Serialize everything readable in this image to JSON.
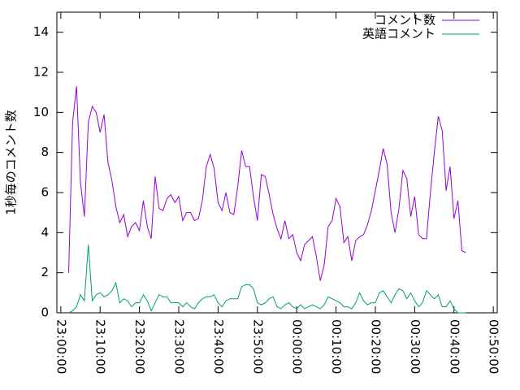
{
  "chart_data": {
    "type": "line",
    "ylabel": "1秒毎のコメント数",
    "x": [
      "23:02:00",
      "23:03:00",
      "23:04:00",
      "23:05:00",
      "23:06:00",
      "23:07:00",
      "23:08:00",
      "23:09:00",
      "23:10:00",
      "23:11:00",
      "23:12:00",
      "23:13:00",
      "23:14:00",
      "23:15:00",
      "23:16:00",
      "23:17:00",
      "23:18:00",
      "23:19:00",
      "23:20:00",
      "23:21:00",
      "23:22:00",
      "23:23:00",
      "23:24:00",
      "23:25:00",
      "23:26:00",
      "23:27:00",
      "23:28:00",
      "23:29:00",
      "23:30:00",
      "23:31:00",
      "23:32:00",
      "23:33:00",
      "23:34:00",
      "23:35:00",
      "23:36:00",
      "23:37:00",
      "23:38:00",
      "23:39:00",
      "23:40:00",
      "23:41:00",
      "23:42:00",
      "23:43:00",
      "23:44:00",
      "23:45:00",
      "23:46:00",
      "23:47:00",
      "23:48:00",
      "23:49:00",
      "23:50:00",
      "23:51:00",
      "23:52:00",
      "23:53:00",
      "23:54:00",
      "23:55:00",
      "23:56:00",
      "23:57:00",
      "23:58:00",
      "23:59:00",
      "00:00:00",
      "00:01:00",
      "00:02:00",
      "00:03:00",
      "00:04:00",
      "00:05:00",
      "00:06:00",
      "00:07:00",
      "00:08:00",
      "00:09:00",
      "00:10:00",
      "00:11:00",
      "00:12:00",
      "00:13:00",
      "00:14:00",
      "00:15:00",
      "00:16:00",
      "00:17:00",
      "00:18:00",
      "00:19:00",
      "00:20:00",
      "00:21:00",
      "00:22:00",
      "00:23:00",
      "00:24:00",
      "00:25:00",
      "00:26:00",
      "00:27:00",
      "00:28:00",
      "00:29:00",
      "00:30:00",
      "00:31:00",
      "00:32:00",
      "00:33:00",
      "00:34:00",
      "00:35:00",
      "00:36:00",
      "00:37:00",
      "00:38:00",
      "00:39:00",
      "00:40:00",
      "00:41:00",
      "00:42:00",
      "00:43:00"
    ],
    "series": [
      {
        "name": "コメント数",
        "color": "#9400d3",
        "values": [
          2.0,
          9.5,
          11.3,
          6.5,
          4.8,
          9.5,
          10.3,
          10.0,
          9.0,
          9.9,
          7.5,
          6.6,
          5.3,
          4.5,
          4.9,
          3.8,
          4.3,
          4.5,
          4.1,
          5.6,
          4.3,
          3.7,
          6.8,
          5.2,
          5.1,
          5.7,
          5.9,
          5.5,
          5.8,
          4.6,
          5.0,
          5.0,
          4.6,
          4.7,
          5.6,
          7.3,
          7.9,
          7.2,
          5.5,
          5.1,
          6.0,
          5.0,
          4.9,
          6.3,
          8.1,
          7.3,
          7.3,
          5.8,
          4.6,
          6.9,
          6.8,
          5.9,
          4.9,
          4.2,
          3.7,
          4.6,
          3.7,
          3.9,
          3.0,
          2.6,
          3.4,
          3.6,
          3.8,
          2.8,
          1.6,
          2.4,
          4.3,
          4.6,
          5.7,
          5.3,
          3.5,
          3.8,
          2.6,
          3.6,
          3.8,
          3.9,
          4.4,
          5.1,
          6.1,
          7.1,
          8.2,
          7.4,
          5.0,
          4.0,
          5.2,
          7.1,
          6.7,
          4.8,
          5.8,
          3.9,
          3.7,
          3.7,
          6.0,
          8.0,
          9.8,
          9.1,
          6.1,
          7.3,
          4.7,
          5.6,
          3.1,
          3.0
        ]
      },
      {
        "name": "英語コメント",
        "color": "#009e73",
        "values": [
          0,
          0.1,
          0.3,
          0.9,
          0.6,
          3.4,
          0.6,
          0.9,
          1.0,
          0.8,
          0.9,
          1.1,
          1.5,
          0.5,
          0.7,
          0.6,
          0.3,
          0.5,
          0.5,
          0.9,
          0.6,
          0.1,
          0.5,
          0.9,
          0.8,
          0.8,
          0.5,
          0.5,
          0.5,
          0.3,
          0.5,
          0.3,
          0.2,
          0.5,
          0.7,
          0.8,
          0.8,
          0.9,
          0.5,
          0.3,
          0.6,
          0.7,
          0.7,
          0.7,
          1.3,
          1.4,
          1.4,
          1.2,
          0.5,
          0.4,
          0.5,
          0.7,
          0.8,
          0.3,
          0.2,
          0.4,
          0.5,
          0.3,
          0.2,
          0.4,
          0.2,
          0.3,
          0.4,
          0.3,
          0.2,
          0.4,
          0.8,
          0.7,
          0.6,
          0.5,
          0.3,
          0.3,
          0.2,
          0.5,
          1.0,
          0.6,
          0.4,
          0.5,
          0.5,
          1.0,
          1.1,
          0.8,
          0.5,
          0.9,
          1.2,
          1.1,
          0.7,
          1.0,
          0.6,
          0.3,
          0.5,
          1.1,
          0.9,
          0.7,
          0.9,
          0.3,
          0.3,
          0.6,
          0.2,
          0,
          0,
          0
        ]
      }
    ],
    "xlim": [
      "22:59:00",
      "00:51:00"
    ],
    "xticks": [
      "23:00:00",
      "23:10:00",
      "23:20:00",
      "23:30:00",
      "23:40:00",
      "23:50:00",
      "00:00:00",
      "00:10:00",
      "00:20:00",
      "00:30:00",
      "00:40:00",
      "00:50:00"
    ],
    "ylim": [
      0,
      15
    ],
    "yticks": [
      0,
      2,
      4,
      6,
      8,
      10,
      12,
      14
    ],
    "legend": "top-right"
  }
}
